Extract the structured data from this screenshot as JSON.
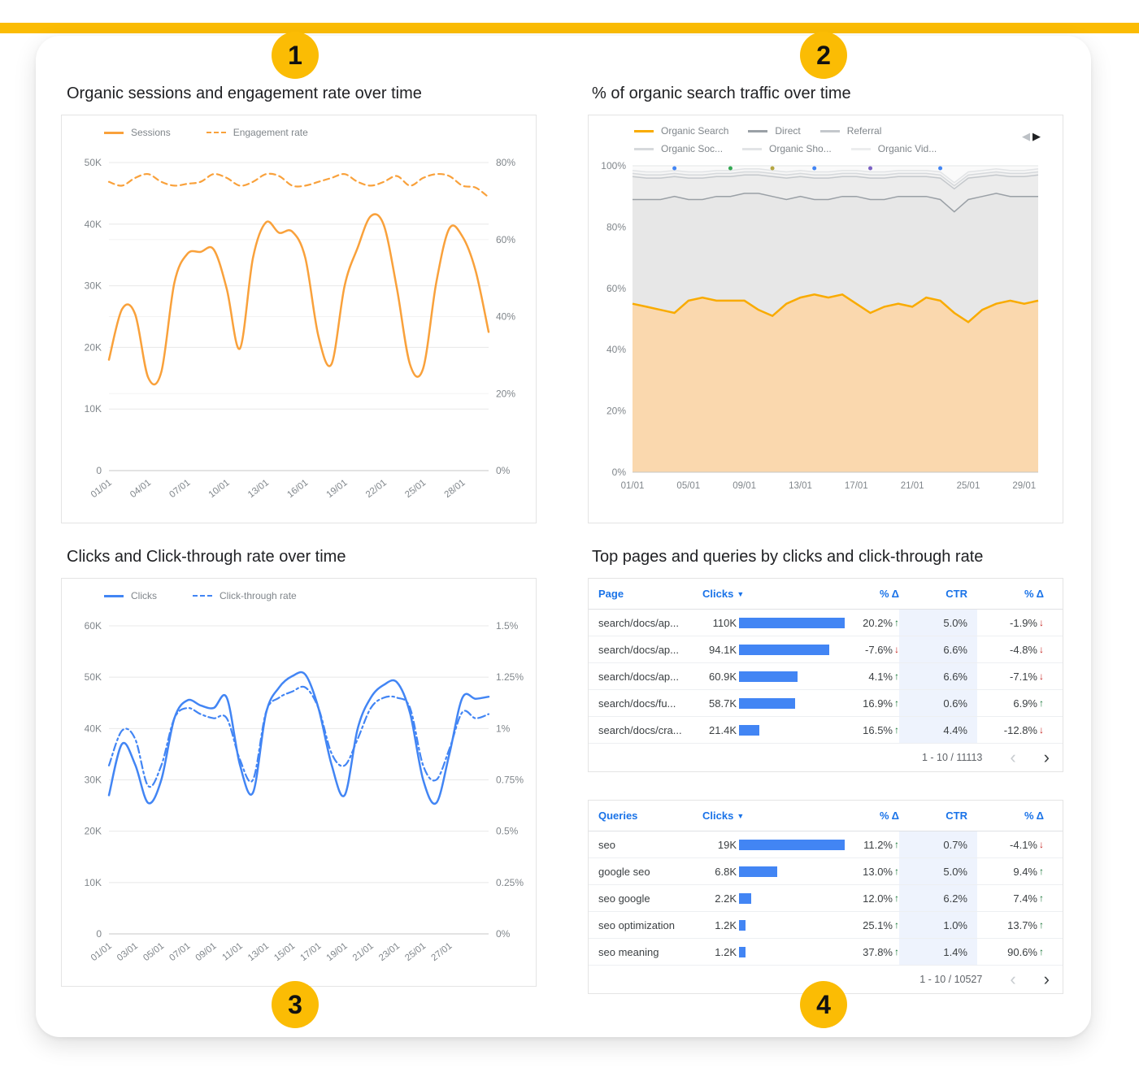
{
  "page": {
    "accent_color": "#FBBC04",
    "badges": [
      {
        "label": "1"
      },
      {
        "label": "2"
      },
      {
        "label": "3"
      },
      {
        "label": "4"
      }
    ]
  },
  "panels": {
    "sessions": {
      "title": "Organic sessions and engagement rate over time"
    },
    "traffic": {
      "title": "% of organic search traffic over time"
    },
    "clicks": {
      "title": "Clicks and Click-through rate over time"
    },
    "tables": {
      "title": "Top pages and queries by clicks and click-through rate"
    }
  },
  "chart_data": [
    {
      "id": "sessions-engagement",
      "type": "line",
      "title": "Organic sessions and engagement rate over time",
      "x": [
        "01/01",
        "02/01",
        "03/01",
        "04/01",
        "05/01",
        "06/01",
        "07/01",
        "08/01",
        "09/01",
        "10/01",
        "11/01",
        "12/01",
        "13/01",
        "14/01",
        "15/01",
        "16/01",
        "17/01",
        "18/01",
        "19/01",
        "20/01",
        "21/01",
        "22/01",
        "23/01",
        "24/01",
        "25/01",
        "26/01",
        "27/01",
        "28/01",
        "29/01",
        "30/01"
      ],
      "x_ticks": [
        "01/01",
        "04/01",
        "07/01",
        "10/01",
        "13/01",
        "16/01",
        "19/01",
        "22/01",
        "25/01",
        "28/01"
      ],
      "left_axis": {
        "min": 0,
        "max": 50000,
        "tick_labels": [
          "0",
          "10K",
          "20K",
          "30K",
          "40K",
          "50K"
        ]
      },
      "right_axis": {
        "min": 0,
        "max": 80,
        "tick_labels": [
          "0%",
          "20%",
          "40%",
          "60%",
          "80%"
        ]
      },
      "series": [
        {
          "name": "Sessions",
          "axis": "left",
          "style": "solid",
          "color": "#F9A13B",
          "values": [
            18000,
            26200,
            25400,
            15100,
            16000,
            30500,
            35200,
            35500,
            35900,
            29500,
            19800,
            34500,
            40300,
            38600,
            38800,
            34500,
            21800,
            17300,
            30000,
            36200,
            41300,
            39800,
            29500,
            17200,
            16600,
            30500,
            39300,
            38000,
            32500,
            22500
          ]
        },
        {
          "name": "Engagement rate",
          "axis": "right",
          "style": "dashed",
          "color": "#F9A13B",
          "values": [
            75,
            74,
            76,
            77,
            75,
            74,
            74.5,
            75,
            77,
            76,
            74,
            75,
            77,
            76.5,
            74,
            74,
            75,
            76,
            77,
            75,
            74,
            75,
            76.5,
            74,
            76,
            77,
            76.5,
            74,
            73.5,
            71
          ]
        }
      ]
    },
    {
      "id": "organic-traffic-share",
      "type": "area",
      "stacked": "percent",
      "title": "% of organic search traffic over time",
      "x": [
        "01/01",
        "02/01",
        "03/01",
        "04/01",
        "05/01",
        "06/01",
        "07/01",
        "08/01",
        "09/01",
        "10/01",
        "11/01",
        "12/01",
        "13/01",
        "14/01",
        "15/01",
        "16/01",
        "17/01",
        "18/01",
        "19/01",
        "20/01",
        "21/01",
        "22/01",
        "23/01",
        "24/01",
        "25/01",
        "26/01",
        "27/01",
        "28/01",
        "29/01",
        "30/01"
      ],
      "x_ticks": [
        "01/01",
        "05/01",
        "09/01",
        "13/01",
        "17/01",
        "21/01",
        "25/01",
        "29/01"
      ],
      "y_axis": {
        "min": 0,
        "max": 100,
        "tick_labels": [
          "0%",
          "20%",
          "40%",
          "60%",
          "80%",
          "100%"
        ]
      },
      "series": [
        {
          "name": "Organic Search",
          "color": "#F9AB00",
          "fill": "#FAD8AE",
          "values": [
            55,
            54,
            53,
            52,
            56,
            57,
            56,
            56,
            56,
            53,
            51,
            55,
            57,
            58,
            57,
            58,
            55,
            52,
            54,
            55,
            54,
            57,
            56,
            52,
            49,
            53,
            55,
            56,
            55,
            56
          ]
        },
        {
          "name": "Direct",
          "color": "#9AA0A6",
          "fill": "#E7E7E7",
          "values": [
            34,
            35,
            36,
            38,
            33,
            32,
            34,
            34,
            35,
            38,
            39,
            34,
            33,
            31,
            32,
            32,
            35,
            37,
            35,
            35,
            36,
            33,
            33,
            33,
            40,
            37,
            36,
            34,
            35,
            34
          ]
        },
        {
          "name": "Referral",
          "color": "#C4C8CC",
          "fill": "#ECECEC",
          "values": [
            7.5,
            7,
            7,
            6.5,
            7,
            7,
            6.5,
            6.5,
            6,
            6,
            6.5,
            7,
            6.5,
            7,
            7,
            6.5,
            6.5,
            7,
            7,
            6.5,
            6.5,
            6.5,
            7,
            7.5,
            7,
            6.5,
            6,
            6.5,
            6.5,
            7
          ]
        },
        {
          "name": "Organic Soc...",
          "color": "#D6D9DC",
          "fill": "#F1F1F1",
          "values": [
            1,
            1,
            1,
            1,
            1,
            1,
            1,
            1,
            1,
            1,
            1,
            1,
            1,
            1,
            1,
            1,
            1,
            1,
            1,
            1,
            1,
            1,
            1,
            1,
            1,
            1,
            1,
            1,
            1,
            1
          ]
        },
        {
          "name": "Organic Sho...",
          "color": "#E2E4E6",
          "fill": "#F6F6F6",
          "values": [
            1,
            1,
            1,
            1,
            1,
            1,
            1,
            1,
            1,
            1,
            1,
            1,
            1,
            1,
            1,
            1,
            1,
            1,
            1,
            1,
            1,
            1,
            1,
            1,
            1,
            1,
            1,
            1,
            1,
            1
          ]
        },
        {
          "name": "Organic Vid...",
          "color": "#ECEDEE",
          "fill": "#FAFAFA",
          "values": [
            1.5,
            2,
            2,
            1.5,
            2,
            2,
            1.5,
            1.5,
            1,
            1,
            1.5,
            2,
            1.5,
            2,
            2,
            1.5,
            1.5,
            2,
            2,
            1.5,
            1.5,
            1.5,
            2,
            5.5,
            2,
            1.5,
            1,
            1.5,
            1.5,
            1
          ]
        }
      ],
      "top_markers": [
        {
          "i": 3,
          "color": "#4285F4"
        },
        {
          "i": 7,
          "color": "#34A853"
        },
        {
          "i": 10,
          "color": "#B5A642"
        },
        {
          "i": 13,
          "color": "#4285F4"
        },
        {
          "i": 17,
          "color": "#7B61C4"
        },
        {
          "i": 22,
          "color": "#4285F4"
        }
      ]
    },
    {
      "id": "clicks-ctr",
      "type": "line",
      "aligned_axes": true,
      "title": "Clicks and Click-through rate over time",
      "x": [
        "01/01",
        "02/01",
        "03/01",
        "04/01",
        "05/01",
        "06/01",
        "07/01",
        "08/01",
        "09/01",
        "10/01",
        "11/01",
        "12/01",
        "13/01",
        "14/01",
        "15/01",
        "16/01",
        "17/01",
        "18/01",
        "19/01",
        "20/01",
        "21/01",
        "22/01",
        "23/01",
        "24/01",
        "25/01",
        "26/01",
        "27/01",
        "28/01",
        "29/01",
        "30/01"
      ],
      "x_ticks": [
        "01/01",
        "03/01",
        "05/01",
        "07/01",
        "09/01",
        "11/01",
        "13/01",
        "15/01",
        "17/01",
        "19/01",
        "21/01",
        "23/01",
        "25/01",
        "27/01"
      ],
      "left_axis": {
        "min": 0,
        "max": 60000,
        "tick_labels": [
          "0",
          "10K",
          "20K",
          "30K",
          "40K",
          "50K",
          "60K"
        ]
      },
      "right_axis": {
        "min": 0,
        "max": 1.5,
        "tick_labels": [
          "0%",
          "0.25%",
          "0.5%",
          "0.75%",
          "1%",
          "1.25%",
          "1.5%"
        ]
      },
      "series": [
        {
          "name": "Clicks",
          "axis": "left",
          "style": "solid",
          "color": "#4285F4",
          "values": [
            27000,
            37000,
            33000,
            25500,
            30000,
            42000,
            45500,
            44500,
            44000,
            46000,
            33000,
            27500,
            43000,
            48000,
            50200,
            50500,
            44000,
            33000,
            27000,
            40000,
            46000,
            48500,
            49000,
            43000,
            30000,
            25500,
            35000,
            46000,
            45800,
            46200
          ]
        },
        {
          "name": "Click-through rate",
          "axis": "right",
          "style": "dashdot",
          "color": "#4285F4",
          "values": [
            0.82,
            0.99,
            0.95,
            0.72,
            0.82,
            1.05,
            1.1,
            1.07,
            1.05,
            1.05,
            0.85,
            0.75,
            1.08,
            1.15,
            1.18,
            1.2,
            1.1,
            0.88,
            0.82,
            0.95,
            1.1,
            1.15,
            1.15,
            1.1,
            0.82,
            0.75,
            0.9,
            1.08,
            1.05,
            1.07
          ]
        }
      ]
    },
    {
      "id": "top-pages",
      "type": "table",
      "bar_color": "#4285F4",
      "columns": [
        "Page",
        "Clicks",
        "% Δ",
        "CTR",
        "% Δ"
      ],
      "column_names": [
        "page",
        "clicks",
        "clicks-delta",
        "ctr",
        "ctr-delta"
      ],
      "sort_column": 1,
      "rows": [
        {
          "label": "search/docs/ap...",
          "clicks_label": "110K",
          "clicks": 110000,
          "delta": "20.2%",
          "delta_dir": "up",
          "ctr": "5.0%",
          "ctr_delta": "-1.9%",
          "ctr_delta_dir": "down"
        },
        {
          "label": "search/docs/ap...",
          "clicks_label": "94.1K",
          "clicks": 94100,
          "delta": "-7.6%",
          "delta_dir": "down",
          "ctr": "6.6%",
          "ctr_delta": "-4.8%",
          "ctr_delta_dir": "down"
        },
        {
          "label": "search/docs/ap...",
          "clicks_label": "60.9K",
          "clicks": 60900,
          "delta": "4.1%",
          "delta_dir": "up",
          "ctr": "6.6%",
          "ctr_delta": "-7.1%",
          "ctr_delta_dir": "down"
        },
        {
          "label": "search/docs/fu...",
          "clicks_label": "58.7K",
          "clicks": 58700,
          "delta": "16.9%",
          "delta_dir": "up",
          "ctr": "0.6%",
          "ctr_delta": "6.9%",
          "ctr_delta_dir": "up"
        },
        {
          "label": "search/docs/cra...",
          "clicks_label": "21.4K",
          "clicks": 21400,
          "delta": "16.5%",
          "delta_dir": "up",
          "ctr": "4.4%",
          "ctr_delta": "-12.8%",
          "ctr_delta_dir": "down"
        }
      ],
      "pagination": "1 - 10 / 11113"
    },
    {
      "id": "top-queries",
      "type": "table",
      "bar_color": "#4285F4",
      "columns": [
        "Queries",
        "Clicks",
        "% Δ",
        "CTR",
        "% Δ"
      ],
      "column_names": [
        "queries",
        "clicks",
        "clicks-delta",
        "ctr",
        "ctr-delta"
      ],
      "sort_column": 1,
      "rows": [
        {
          "label": "seo",
          "clicks_label": "19K",
          "clicks": 19000,
          "delta": "11.2%",
          "delta_dir": "up",
          "ctr": "0.7%",
          "ctr_delta": "-4.1%",
          "ctr_delta_dir": "down"
        },
        {
          "label": "google seo",
          "clicks_label": "6.8K",
          "clicks": 6800,
          "delta": "13.0%",
          "delta_dir": "up",
          "ctr": "5.0%",
          "ctr_delta": "9.4%",
          "ctr_delta_dir": "up"
        },
        {
          "label": "seo google",
          "clicks_label": "2.2K",
          "clicks": 2200,
          "delta": "12.0%",
          "delta_dir": "up",
          "ctr": "6.2%",
          "ctr_delta": "7.4%",
          "ctr_delta_dir": "up"
        },
        {
          "label": "seo optimization",
          "clicks_label": "1.2K",
          "clicks": 1200,
          "delta": "25.1%",
          "delta_dir": "up",
          "ctr": "1.0%",
          "ctr_delta": "13.7%",
          "ctr_delta_dir": "up"
        },
        {
          "label": "seo meaning",
          "clicks_label": "1.2K",
          "clicks": 1200,
          "delta": "37.8%",
          "delta_dir": "up",
          "ctr": "1.4%",
          "ctr_delta": "90.6%",
          "ctr_delta_dir": "up"
        }
      ],
      "pagination": "1 - 10 / 10527"
    }
  ]
}
